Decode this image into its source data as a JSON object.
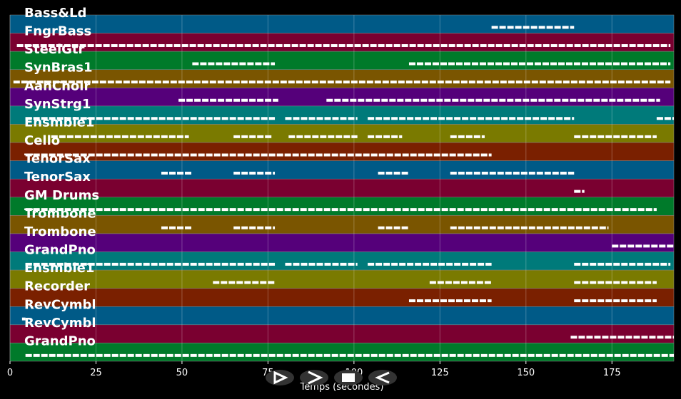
{
  "chart_data": {
    "type": "pianoroll",
    "xlabel": "Temps (secondes)",
    "xlim": [
      0,
      193
    ],
    "xticks": [
      0,
      25,
      50,
      75,
      100,
      125,
      150,
      175
    ],
    "grid": true,
    "note_color": "#ffffff",
    "tracks": [
      {
        "name": "Bass&Ld",
        "color": "#005a87",
        "segments": [
          [
            140,
            164
          ]
        ]
      },
      {
        "name": "FngrBass",
        "color": "#7a0030",
        "segments": [
          [
            2,
            192
          ]
        ]
      },
      {
        "name": "SteelGtr",
        "color": "#007a2a",
        "segments": [
          [
            53,
            77
          ],
          [
            116,
            192
          ]
        ]
      },
      {
        "name": "SynBras1",
        "color": "#7a5500",
        "segments": [
          [
            1,
            192
          ]
        ]
      },
      {
        "name": "AahChoir",
        "color": "#55007a",
        "segments": [
          [
            49,
            78
          ],
          [
            92,
            189
          ]
        ]
      },
      {
        "name": "SynStrg1",
        "color": "#007a7a",
        "segments": [
          [
            4.5,
            77
          ],
          [
            80,
            101
          ],
          [
            104,
            164
          ],
          [
            188,
            193
          ]
        ]
      },
      {
        "name": "Ensmble1",
        "color": "#7a7a00",
        "segments": [
          [
            12,
            52
          ],
          [
            65,
            76
          ],
          [
            81,
            101
          ],
          [
            104,
            114
          ],
          [
            128,
            138
          ],
          [
            164,
            188
          ]
        ]
      },
      {
        "name": "Cello",
        "color": "#7a2000",
        "segments": [
          [
            4.5,
            140
          ]
        ]
      },
      {
        "name": "TenorSax",
        "color": "#005a87",
        "segments": [
          [
            44,
            53
          ],
          [
            65,
            77
          ],
          [
            107,
            116
          ],
          [
            128,
            164
          ]
        ]
      },
      {
        "name": "TenorSax",
        "color": "#7a0030",
        "segments": [
          [
            164,
            167
          ]
        ]
      },
      {
        "name": "GM Drums",
        "color": "#007a2a",
        "segments": [
          [
            4.5,
            188
          ]
        ]
      },
      {
        "name": "Trombone",
        "color": "#7a5500",
        "segments": [
          [
            44,
            53
          ],
          [
            65,
            77
          ],
          [
            107,
            116
          ],
          [
            128,
            174
          ]
        ]
      },
      {
        "name": "Trombone",
        "color": "#55007a",
        "segments": [
          [
            175,
            193
          ]
        ]
      },
      {
        "name": "GrandPno",
        "color": "#007a7a",
        "segments": [
          [
            4.5,
            77
          ],
          [
            80,
            101
          ],
          [
            104,
            140
          ],
          [
            164,
            192
          ]
        ]
      },
      {
        "name": "Ensmble1",
        "color": "#7a7a00",
        "segments": [
          [
            59,
            77
          ],
          [
            122,
            140
          ],
          [
            164,
            188
          ]
        ]
      },
      {
        "name": "Recorder",
        "color": "#7a2000",
        "segments": [
          [
            116,
            140
          ],
          [
            164,
            188
          ]
        ]
      },
      {
        "name": "RevCymbl",
        "color": "#005a87",
        "segments": [
          [
            3.5,
            4.5
          ]
        ]
      },
      {
        "name": "RevCymbl",
        "color": "#7a0030",
        "segments": [
          [
            163,
            193
          ]
        ]
      },
      {
        "name": "GrandPno",
        "color": "#007a2a",
        "segments": [
          [
            4.5,
            193
          ]
        ]
      }
    ]
  }
}
